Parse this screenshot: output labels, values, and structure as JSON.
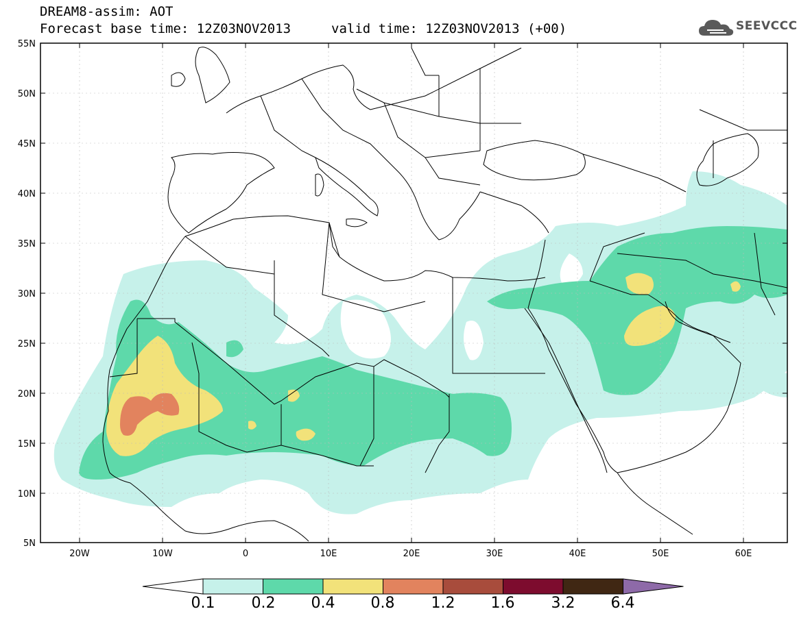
{
  "header": {
    "title": "DREAM8-assim: AOT",
    "base_time": "Forecast base time: 12Z03NOV2013",
    "valid_time": "valid time: 12Z03NOV2013 (+00)"
  },
  "logo": {
    "text": "SEEVCCC",
    "icon": "cloud-icon"
  },
  "map": {
    "lat_labels": [
      "55N",
      "50N",
      "45N",
      "40N",
      "35N",
      "30N",
      "25N",
      "20N",
      "15N",
      "10N",
      "5N"
    ],
    "lon_labels": [
      "20W",
      "10W",
      "0",
      "10E",
      "20E",
      "30E",
      "40E",
      "50E",
      "60E"
    ],
    "extent": {
      "lon": [
        -25,
        65
      ],
      "lat": [
        5,
        55
      ]
    }
  },
  "colorbar": {
    "labels": [
      "0.1",
      "0.2",
      "0.4",
      "0.8",
      "1.2",
      "1.6",
      "3.2",
      "6.4"
    ],
    "colors": [
      "#c6f1ea",
      "#5ed9aa",
      "#f2e27a",
      "#e2835e",
      "#a84c3c",
      "#7d0c2e",
      "#402713",
      "#8e6aa8"
    ]
  }
}
